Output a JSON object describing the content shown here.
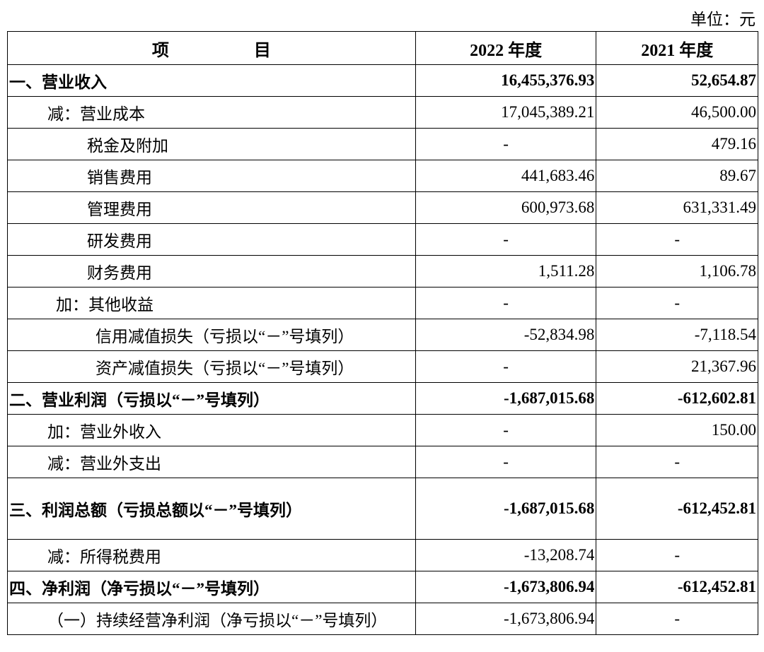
{
  "header": {
    "unit": "单位：元"
  },
  "table": {
    "headers": [
      "项　　　　　目",
      "2022 年度",
      "2021 年度"
    ],
    "rows": [
      [
        "一、营业收入",
        "16,455,376.93",
        "52,654.87"
      ],
      [
        "减：营业成本",
        "17,045,389.21",
        "46,500.00"
      ],
      [
        "税金及附加",
        "-",
        "479.16"
      ],
      [
        "销售费用",
        "441,683.46",
        "89.67"
      ],
      [
        "管理费用",
        "600,973.68",
        "631,331.49"
      ],
      [
        "研发费用",
        "-",
        "-"
      ],
      [
        "财务费用",
        "1,511.28",
        "1,106.78"
      ],
      [
        "加：其他收益",
        "-",
        "-"
      ],
      [
        "信用减值损失（亏损以“－”号填列）",
        "-52,834.98",
        "-7,118.54"
      ],
      [
        "资产减值损失（亏损以“－”号填列）",
        "-",
        "21,367.96"
      ],
      [
        "二、营业利润（亏损以“－”号填列）",
        "-1,687,015.68",
        "-612,602.81"
      ],
      [
        "加：营业外收入",
        "-",
        "150.00"
      ],
      [
        "减：营业外支出",
        "-",
        "-"
      ],
      [
        "三、利润总额（亏损总额以“－”号填列）",
        "-1,687,015.68",
        "-612,452.81"
      ],
      [
        "减：所得税费用",
        "-13,208.74",
        "-"
      ],
      [
        "四、净利润（净亏损以“－”号填列）",
        "-1,673,806.94",
        "-612,452.81"
      ],
      [
        "（一）持续经营净利润（净亏损以“－”号填列）",
        "-1,673,806.94",
        "-"
      ]
    ]
  }
}
